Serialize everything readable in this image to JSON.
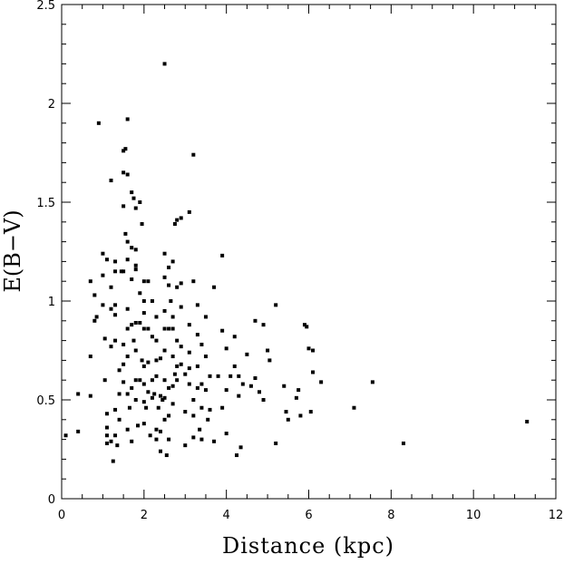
{
  "chart_data": {
    "type": "scatter",
    "xlabel": "Distance (kpc)",
    "ylabel": "E(B−V)",
    "xlim": [
      0,
      12
    ],
    "ylim": [
      0,
      2.5
    ],
    "x_ticks": [
      0,
      2,
      4,
      6,
      8,
      10,
      12
    ],
    "y_ticks": [
      0,
      0.5,
      1,
      1.5,
      2,
      2.5
    ],
    "x_tick_labels": [
      "0",
      "2",
      "4",
      "6",
      "8",
      "10",
      "12"
    ],
    "y_tick_labels": [
      "0",
      "0.5",
      "1",
      "1.5",
      "2",
      "2.5"
    ],
    "grid": false,
    "legend": "none",
    "marker_color": "#000000",
    "points": [
      [
        0.1,
        0.32
      ],
      [
        0.4,
        0.53
      ],
      [
        0.4,
        0.34
      ],
      [
        0.7,
        0.72
      ],
      [
        0.7,
        0.52
      ],
      [
        0.7,
        1.1
      ],
      [
        0.8,
        0.9
      ],
      [
        0.8,
        1.03
      ],
      [
        0.85,
        0.92
      ],
      [
        0.9,
        1.9
      ],
      [
        1.0,
        1.24
      ],
      [
        1.0,
        1.13
      ],
      [
        1.0,
        0.98
      ],
      [
        1.05,
        0.81
      ],
      [
        1.05,
        0.6
      ],
      [
        1.1,
        1.21
      ],
      [
        1.1,
        0.43
      ],
      [
        1.1,
        0.36
      ],
      [
        1.1,
        0.32
      ],
      [
        1.1,
        0.28
      ],
      [
        1.2,
        1.61
      ],
      [
        1.2,
        1.07
      ],
      [
        1.2,
        0.96
      ],
      [
        1.2,
        0.77
      ],
      [
        1.2,
        0.29
      ],
      [
        1.25,
        0.19
      ],
      [
        1.3,
        1.2
      ],
      [
        1.3,
        1.15
      ],
      [
        1.3,
        0.98
      ],
      [
        1.3,
        0.93
      ],
      [
        1.3,
        0.8
      ],
      [
        1.3,
        0.45
      ],
      [
        1.3,
        0.32
      ],
      [
        1.35,
        0.27
      ],
      [
        1.4,
        0.65
      ],
      [
        1.4,
        0.53
      ],
      [
        1.4,
        0.4
      ],
      [
        1.45,
        1.15
      ],
      [
        1.5,
        1.76
      ],
      [
        1.5,
        1.65
      ],
      [
        1.5,
        1.48
      ],
      [
        1.5,
        1.15
      ],
      [
        1.5,
        0.78
      ],
      [
        1.5,
        0.68
      ],
      [
        1.5,
        0.59
      ],
      [
        1.55,
        1.77
      ],
      [
        1.55,
        1.34
      ],
      [
        1.6,
        1.92
      ],
      [
        1.6,
        1.64
      ],
      [
        1.6,
        1.3
      ],
      [
        1.6,
        1.21
      ],
      [
        1.6,
        0.96
      ],
      [
        1.6,
        0.86
      ],
      [
        1.6,
        0.72
      ],
      [
        1.6,
        0.53
      ],
      [
        1.6,
        0.35
      ],
      [
        1.65,
        0.46
      ],
      [
        1.7,
        1.55
      ],
      [
        1.7,
        1.27
      ],
      [
        1.7,
        1.11
      ],
      [
        1.7,
        0.88
      ],
      [
        1.7,
        0.56
      ],
      [
        1.7,
        0.29
      ],
      [
        1.75,
        1.52
      ],
      [
        1.75,
        0.8
      ],
      [
        1.8,
        1.47
      ],
      [
        1.8,
        1.26
      ],
      [
        1.8,
        1.18
      ],
      [
        1.8,
        1.16
      ],
      [
        1.8,
        0.89
      ],
      [
        1.8,
        0.75
      ],
      [
        1.8,
        0.6
      ],
      [
        1.8,
        0.5
      ],
      [
        1.85,
        0.37
      ],
      [
        1.9,
        1.5
      ],
      [
        1.9,
        1.04
      ],
      [
        1.9,
        0.89
      ],
      [
        1.9,
        0.6
      ],
      [
        1.95,
        1.39
      ],
      [
        1.95,
        0.7
      ],
      [
        2.0,
        1.1
      ],
      [
        2.0,
        1.0
      ],
      [
        2.0,
        0.94
      ],
      [
        2.0,
        0.86
      ],
      [
        2.0,
        0.67
      ],
      [
        2.0,
        0.58
      ],
      [
        2.0,
        0.49
      ],
      [
        2.0,
        0.38
      ],
      [
        2.05,
        0.46
      ],
      [
        2.1,
        1.1
      ],
      [
        2.1,
        0.86
      ],
      [
        2.1,
        0.69
      ],
      [
        2.1,
        0.54
      ],
      [
        2.15,
        0.32
      ],
      [
        2.2,
        1.0
      ],
      [
        2.2,
        0.82
      ],
      [
        2.2,
        0.6
      ],
      [
        2.2,
        0.51
      ],
      [
        2.25,
        0.53
      ],
      [
        2.3,
        0.92
      ],
      [
        2.3,
        0.8
      ],
      [
        2.3,
        0.7
      ],
      [
        2.3,
        0.62
      ],
      [
        2.3,
        0.3
      ],
      [
        2.3,
        0.35
      ],
      [
        2.35,
        0.46
      ],
      [
        2.4,
        0.71
      ],
      [
        2.4,
        0.52
      ],
      [
        2.4,
        0.34
      ],
      [
        2.4,
        0.24
      ],
      [
        2.45,
        0.5
      ],
      [
        2.5,
        2.2
      ],
      [
        2.5,
        1.24
      ],
      [
        2.5,
        1.12
      ],
      [
        2.5,
        0.95
      ],
      [
        2.5,
        0.86
      ],
      [
        2.5,
        0.75
      ],
      [
        2.5,
        0.6
      ],
      [
        2.5,
        0.51
      ],
      [
        2.5,
        0.4
      ],
      [
        2.55,
        0.22
      ],
      [
        2.6,
        1.17
      ],
      [
        2.6,
        1.08
      ],
      [
        2.6,
        0.86
      ],
      [
        2.6,
        0.56
      ],
      [
        2.6,
        0.42
      ],
      [
        2.6,
        0.3
      ],
      [
        2.65,
        1.0
      ],
      [
        2.7,
        1.2
      ],
      [
        2.7,
        0.92
      ],
      [
        2.7,
        0.86
      ],
      [
        2.7,
        0.72
      ],
      [
        2.7,
        0.57
      ],
      [
        2.7,
        0.48
      ],
      [
        2.75,
        1.39
      ],
      [
        2.75,
        0.63
      ],
      [
        2.8,
        1.41
      ],
      [
        2.8,
        1.07
      ],
      [
        2.8,
        0.8
      ],
      [
        2.8,
        0.6
      ],
      [
        2.8,
        0.67
      ],
      [
        2.9,
        1.42
      ],
      [
        2.9,
        1.09
      ],
      [
        2.9,
        0.97
      ],
      [
        2.9,
        0.77
      ],
      [
        2.9,
        0.68
      ],
      [
        3.0,
        0.63
      ],
      [
        3.0,
        0.44
      ],
      [
        3.0,
        0.27
      ],
      [
        3.1,
        1.45
      ],
      [
        3.1,
        0.88
      ],
      [
        3.1,
        0.74
      ],
      [
        3.1,
        0.66
      ],
      [
        3.1,
        0.58
      ],
      [
        3.2,
        1.74
      ],
      [
        3.2,
        1.1
      ],
      [
        3.2,
        0.5
      ],
      [
        3.2,
        0.42
      ],
      [
        3.2,
        0.31
      ],
      [
        3.3,
        0.98
      ],
      [
        3.3,
        0.83
      ],
      [
        3.3,
        0.67
      ],
      [
        3.3,
        0.56
      ],
      [
        3.35,
        0.35
      ],
      [
        3.4,
        0.78
      ],
      [
        3.4,
        0.58
      ],
      [
        3.4,
        0.46
      ],
      [
        3.4,
        0.3
      ],
      [
        3.5,
        0.92
      ],
      [
        3.5,
        0.72
      ],
      [
        3.5,
        0.55
      ],
      [
        3.55,
        0.4
      ],
      [
        3.6,
        0.62
      ],
      [
        3.6,
        0.45
      ],
      [
        3.7,
        1.07
      ],
      [
        3.7,
        0.29
      ],
      [
        3.8,
        0.62
      ],
      [
        3.9,
        1.23
      ],
      [
        3.9,
        0.85
      ],
      [
        3.9,
        0.46
      ],
      [
        4.0,
        0.76
      ],
      [
        4.0,
        0.55
      ],
      [
        4.0,
        0.33
      ],
      [
        4.1,
        0.62
      ],
      [
        4.2,
        0.82
      ],
      [
        4.2,
        0.67
      ],
      [
        4.25,
        0.22
      ],
      [
        4.3,
        0.62
      ],
      [
        4.3,
        0.52
      ],
      [
        4.35,
        0.26
      ],
      [
        4.4,
        0.58
      ],
      [
        4.5,
        0.73
      ],
      [
        4.6,
        0.57
      ],
      [
        4.7,
        0.9
      ],
      [
        4.7,
        0.61
      ],
      [
        4.8,
        0.54
      ],
      [
        4.9,
        0.88
      ],
      [
        4.9,
        0.5
      ],
      [
        5.0,
        0.75
      ],
      [
        5.05,
        0.7
      ],
      [
        5.2,
        0.98
      ],
      [
        5.2,
        0.28
      ],
      [
        5.4,
        0.57
      ],
      [
        5.45,
        0.44
      ],
      [
        5.5,
        0.4
      ],
      [
        5.7,
        0.51
      ],
      [
        5.75,
        0.55
      ],
      [
        5.8,
        0.42
      ],
      [
        5.9,
        0.88
      ],
      [
        5.95,
        0.87
      ],
      [
        6.0,
        0.76
      ],
      [
        6.05,
        0.44
      ],
      [
        6.1,
        0.75
      ],
      [
        6.1,
        0.64
      ],
      [
        6.3,
        0.59
      ],
      [
        7.1,
        0.46
      ],
      [
        7.55,
        0.59
      ],
      [
        8.3,
        0.28
      ],
      [
        11.3,
        0.39
      ]
    ]
  }
}
